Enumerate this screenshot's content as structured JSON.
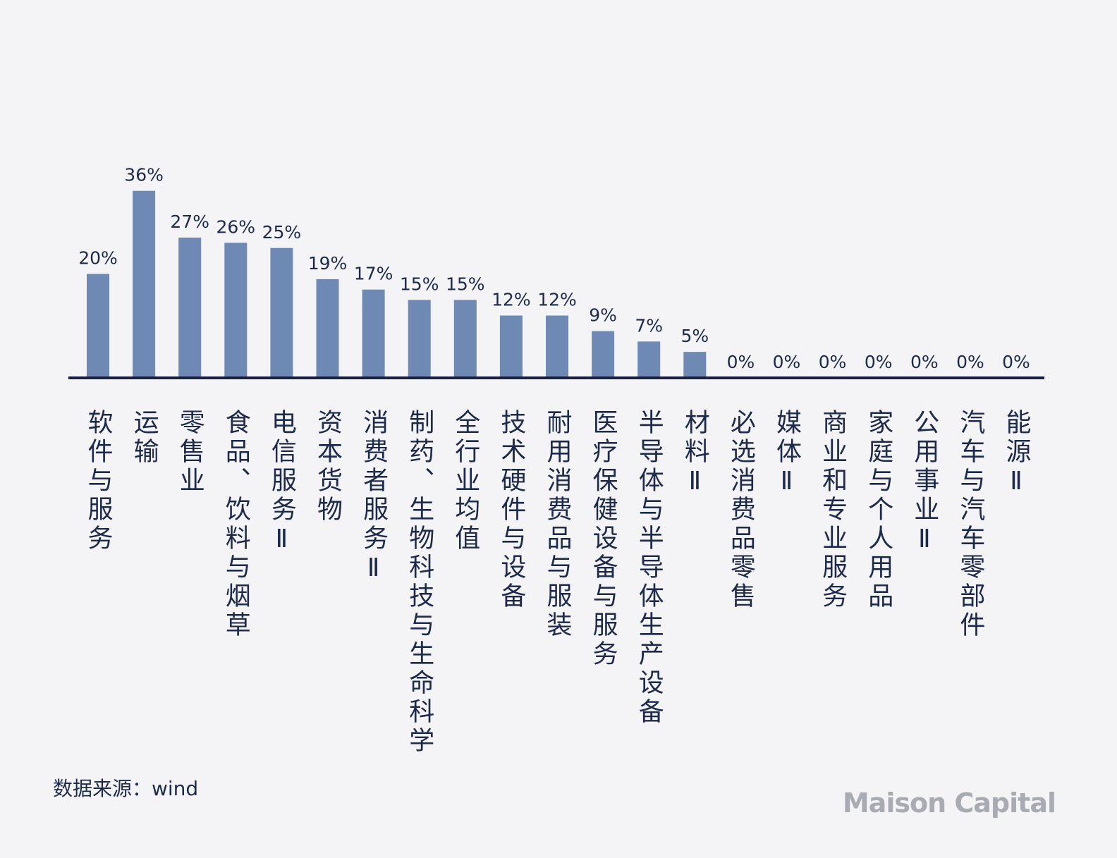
{
  "chart_data": {
    "type": "bar",
    "categories": [
      "软件与服务",
      "运输",
      "零售业",
      "食品、饮料与烟草",
      "电信服务Ⅱ",
      "资本货物",
      "消费者服务Ⅱ",
      "制药、生物科技与生命科学",
      "全行业均值",
      "技术硬件与设备",
      "耐用消费品与服装",
      "医疗保健设备与服务",
      "半导体与半导体生产设备",
      "材料Ⅱ",
      "必选消费品零售",
      "媒体Ⅱ",
      "商业和专业服务",
      "家庭与个人用品",
      "公用事业Ⅱ",
      "汽车与汽车零部件",
      "能源Ⅱ"
    ],
    "values": [
      20,
      36,
      27,
      26,
      25,
      19,
      17,
      15,
      15,
      12,
      12,
      9,
      7,
      5,
      0,
      0,
      0,
      0,
      0,
      0,
      0
    ],
    "value_labels": [
      "20%",
      "36%",
      "27%",
      "26%",
      "25%",
      "19%",
      "17%",
      "15%",
      "15%",
      "12%",
      "12%",
      "9%",
      "7%",
      "5%",
      "0%",
      "0%",
      "0%",
      "0%",
      "0%",
      "0%",
      "0%"
    ],
    "color": "#6e89b4",
    "source": "数据来源：wind",
    "brand": "Maison Capital"
  }
}
